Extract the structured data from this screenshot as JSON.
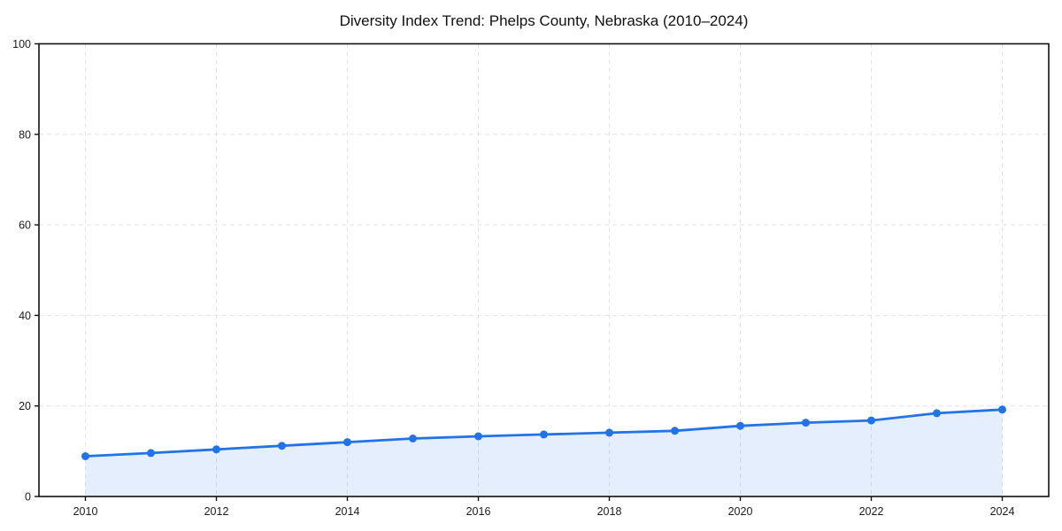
{
  "chart_data": {
    "type": "line",
    "title": "Diversity Index Trend: Phelps County, Nebraska (2010–2024)",
    "x": [
      2010,
      2011,
      2012,
      2013,
      2014,
      2015,
      2016,
      2017,
      2018,
      2019,
      2020,
      2021,
      2022,
      2023,
      2024
    ],
    "values": [
      8.9,
      9.6,
      10.4,
      11.2,
      12.0,
      12.8,
      13.3,
      13.7,
      14.1,
      14.5,
      15.6,
      16.3,
      16.8,
      18.4,
      19.2
    ],
    "xticks": [
      2010,
      2012,
      2014,
      2016,
      2018,
      2020,
      2022,
      2024
    ],
    "yticks": [
      0,
      20,
      40,
      60,
      80,
      100
    ],
    "ylim": [
      0,
      100
    ],
    "xlabel": "",
    "ylabel": "",
    "grid": "dashed",
    "legend": "none",
    "marker": "circle",
    "area_fill": true,
    "colors": {
      "line": "#2273e8",
      "marker": "#2273e8",
      "area": "rgba(34, 115, 232, 0.12)",
      "gridline": "#e3e3e3",
      "axis": "#111111",
      "tick_label": "#1c1c1c",
      "title": "#111111",
      "background": "#ffffff"
    }
  }
}
